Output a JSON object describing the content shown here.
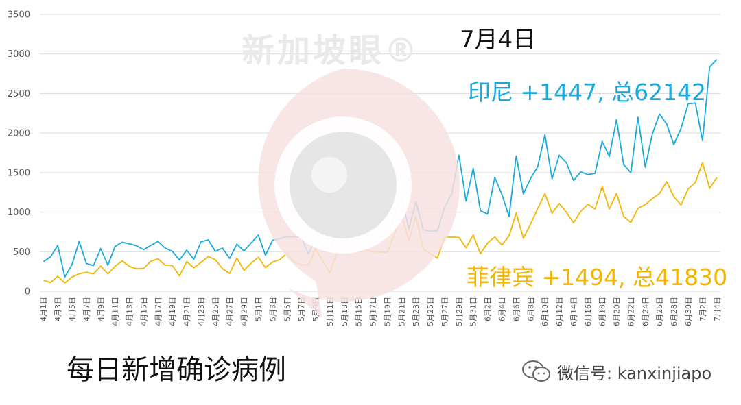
{
  "watermark": {
    "text": "新加坡眼®"
  },
  "annotations": {
    "date": "7月4日",
    "indonesia": "印尼 +1447, 总62142",
    "philippines": "菲律宾 +1494, 总41830"
  },
  "caption": "每日新增确诊病例",
  "wechat": {
    "label": "微信号: kanxinjiapo",
    "icon": "wechat-icon"
  },
  "colors": {
    "indonesia": "#19a9dd",
    "philippines": "#f5b400",
    "grid": "#d9d9d9",
    "axis_text": "#595959"
  },
  "chart_data": {
    "type": "line",
    "title": "",
    "xlabel": "",
    "ylabel": "",
    "ylim": [
      0,
      3500
    ],
    "yticks": [
      0,
      500,
      1000,
      1500,
      2000,
      2500,
      3000,
      3500
    ],
    "grid": true,
    "x": [
      "4月1日",
      "4月2日",
      "4月3日",
      "4月4日",
      "4月5日",
      "4月6日",
      "4月7日",
      "4月8日",
      "4月9日",
      "4月10日",
      "4月11日",
      "4月12日",
      "4月13日",
      "4月14日",
      "4月15日",
      "4月16日",
      "4月17日",
      "4月18日",
      "4月19日",
      "4月20日",
      "4月21日",
      "4月22日",
      "4月23日",
      "4月24日",
      "4月25日",
      "4月26日",
      "4月27日",
      "4月28日",
      "4月29日",
      "4月30日",
      "5月1日",
      "5月2日",
      "5月3日",
      "5月4日",
      "5月5日",
      "5月6日",
      "5月7日",
      "5月8日",
      "5月9日",
      "5月10日",
      "5月11日",
      "5月12日",
      "5月13日",
      "5月14日",
      "5月15日",
      "5月16日",
      "5月17日",
      "5月18日",
      "5月19日",
      "5月20日",
      "5月21日",
      "5月22日",
      "5月23日",
      "5月24日",
      "5月25日",
      "5月26日",
      "5月27日",
      "5月28日",
      "5月29日",
      "5月30日",
      "5月31日",
      "6月1日",
      "6月2日",
      "6月3日",
      "6月4日",
      "6月5日",
      "6月6日",
      "6月7日",
      "6月8日",
      "6月9日",
      "6月10日",
      "6月11日",
      "6月12日",
      "6月13日",
      "6月14日",
      "6月15日",
      "6月16日",
      "6月17日",
      "6月18日",
      "6月19日",
      "6月20日",
      "6月21日",
      "6月22日",
      "6月23日",
      "6月24日",
      "6月25日",
      "6月26日",
      "6月27日",
      "6月28日",
      "6月29日",
      "6月30日",
      "7月1日",
      "7月2日",
      "7月3日",
      "7月4日"
    ],
    "xtick_labels": [
      "4月1日",
      "4月3日",
      "4月5日",
      "4月7日",
      "4月9日",
      "4月11日",
      "4月13日",
      "4月15日",
      "4月17日",
      "4月19日",
      "4月21日",
      "4月23日",
      "4月25日",
      "4月27日",
      "4月29日",
      "5月1日",
      "5月3日",
      "5月5日",
      "5月7日",
      "5月9日",
      "5月11日",
      "5月13日",
      "5月15日",
      "5月17日",
      "5月19日",
      "5月21日",
      "5月23日",
      "5月25日",
      "5月27日",
      "5月29日",
      "5月31日",
      "6月2日",
      "6月4日",
      "6月6日",
      "6月8日",
      "6月10日",
      "6月12日",
      "6月14日",
      "6月16日",
      "6月18日",
      "6月20日",
      "6月22日",
      "6月24日",
      "6月26日",
      "6月28日",
      "6月30日",
      "7月2日",
      "7月4日"
    ],
    "series": [
      {
        "values": [
          375,
          435,
          580,
          180,
          340,
          630,
          350,
          325,
          540,
          330,
          565,
          620,
          600,
          575,
          525,
          580,
          630,
          545,
          505,
          395,
          520,
          405,
          625,
          650,
          505,
          545,
          415,
          595,
          510,
          610,
          710,
          455,
          645,
          665,
          690,
          690,
          680,
          470,
          675,
          580,
          535,
          750,
          960,
          840,
          710,
          735,
          700,
          700,
          705,
          965,
          1185,
          790,
          1130,
          780,
          760,
          765,
          1060,
          1230,
          1720,
          1140,
          1555,
          1020,
          975,
          1440,
          1225,
          945,
          1710,
          1230,
          1425,
          1575,
          1980,
          1420,
          1720,
          1625,
          1400,
          1510,
          1475,
          1490,
          1895,
          1705,
          2170,
          1600,
          1500,
          2200,
          1570,
          1990,
          2240,
          2115,
          1855,
          2060,
          2370,
          2380,
          1905,
          2835,
          2930
        ]
      },
      {
        "values": [
          140,
          110,
          190,
          105,
          180,
          220,
          240,
          220,
          320,
          220,
          315,
          385,
          315,
          285,
          290,
          380,
          410,
          330,
          325,
          195,
          375,
          295,
          365,
          440,
          400,
          285,
          225,
          420,
          265,
          355,
          430,
          300,
          370,
          400,
          480,
          370,
          335,
          330,
          535,
          380,
          235,
          490,
          690,
          555,
          495,
          530,
          500,
          495,
          490,
          720,
          975,
          640,
          950,
          530,
          475,
          420,
          680,
          685,
          680,
          550,
          710,
          475,
          610,
          685,
          585,
          700,
          990,
          670,
          850,
          1045,
          1235,
          985,
          1110,
          1000,
          865,
          1010,
          1100,
          1040,
          1325,
          1040,
          1235,
          945,
          870,
          1050,
          1095,
          1170,
          1235,
          1385,
          1195,
          1090,
          1295,
          1375,
          1625,
          1300,
          1440
        ]
      }
    ]
  }
}
